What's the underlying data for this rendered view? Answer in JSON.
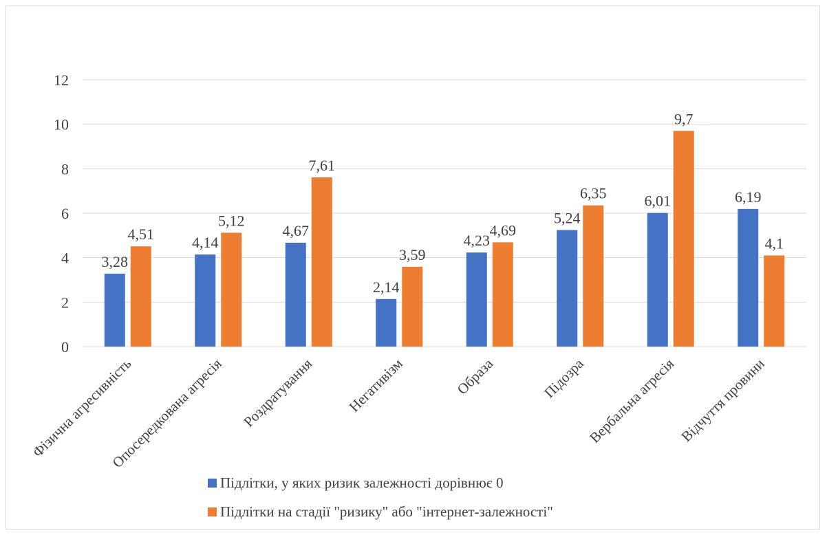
{
  "chart_data": {
    "type": "bar",
    "title": "",
    "xlabel": "",
    "ylabel": "",
    "ylim": [
      0,
      12
    ],
    "yticks": [
      0,
      2,
      4,
      6,
      8,
      10,
      12
    ],
    "grid": true,
    "legend_position": "bottom",
    "categories": [
      "Фізична агресивність",
      "Опосередкована агресія",
      "Роздратування",
      "Негативізм",
      "Образа",
      "Підозра",
      "Вербальна агресія",
      "Відчуття провини"
    ],
    "series": [
      {
        "name": "Підлітки, у яких ризик залежності дорівнює 0",
        "color": "#4472c4",
        "values": [
          3.28,
          4.14,
          4.67,
          2.14,
          4.23,
          5.24,
          6.01,
          6.19
        ],
        "labels": [
          "3,28",
          "4,14",
          "4,67",
          "2,14",
          "4,23",
          "5,24",
          "6,01",
          "6,19"
        ]
      },
      {
        "name": "Підлітки на стадії \"ризику\" або \"інтернет-залежності\"",
        "color": "#ed7d31",
        "values": [
          4.51,
          5.12,
          7.61,
          3.59,
          4.69,
          6.35,
          9.7,
          4.1
        ],
        "labels": [
          "4,51",
          "5,12",
          "7,61",
          "3,59",
          "4,69",
          "6,35",
          "9,7",
          "4,1"
        ]
      }
    ]
  }
}
